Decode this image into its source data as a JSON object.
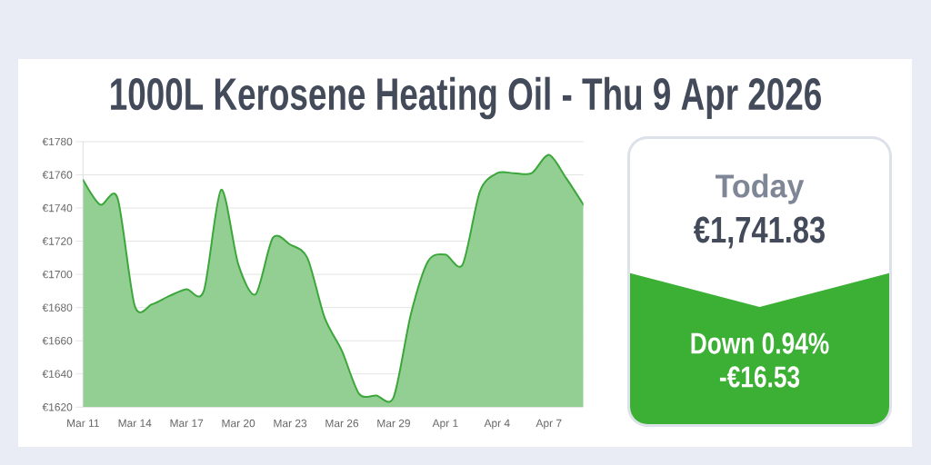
{
  "chart_data": [
    {
      "type": "area",
      "title": "1000L Kerosene Heating Oil - Thu 9 Apr 2026",
      "categories": [
        "Mar 11",
        null,
        null,
        "Mar 14",
        null,
        null,
        "Mar 17",
        null,
        null,
        "Mar 20",
        null,
        null,
        "Mar 23",
        null,
        null,
        "Mar 26",
        null,
        null,
        "Mar 29",
        null,
        null,
        "Apr 1",
        null,
        null,
        "Apr 4",
        null,
        null,
        "Apr 7",
        null,
        null
      ],
      "values": [
        1757,
        1742,
        1746,
        1681,
        1682,
        1687,
        1691,
        1690,
        1751,
        1706,
        1688,
        1722,
        1718,
        1710,
        1674,
        1654,
        1628,
        1627,
        1626,
        1676,
        1708,
        1712,
        1706,
        1750,
        1761,
        1761,
        1761,
        1772,
        1758,
        1742
      ],
      "color": "#3ba73b",
      "ylim": [
        1620,
        1780
      ],
      "yticks": [
        {
          "value": 1620,
          "label": "€1620"
        },
        {
          "value": 1640,
          "label": "€1640"
        },
        {
          "value": 1660,
          "label": "€1660"
        },
        {
          "value": 1680,
          "label": "€1680"
        },
        {
          "value": 1700,
          "label": "€1700"
        },
        {
          "value": 1720,
          "label": "€1720"
        },
        {
          "value": 1740,
          "label": "€1740"
        },
        {
          "value": 1760,
          "label": "€1760"
        },
        {
          "value": 1780,
          "label": "€1780"
        }
      ],
      "grid": "y"
    },
    {
      "type": "other",
      "title": "Today",
      "annotations": [
        "€1,741.83",
        "Down 0.94%",
        "-€16.53"
      ]
    }
  ]
}
